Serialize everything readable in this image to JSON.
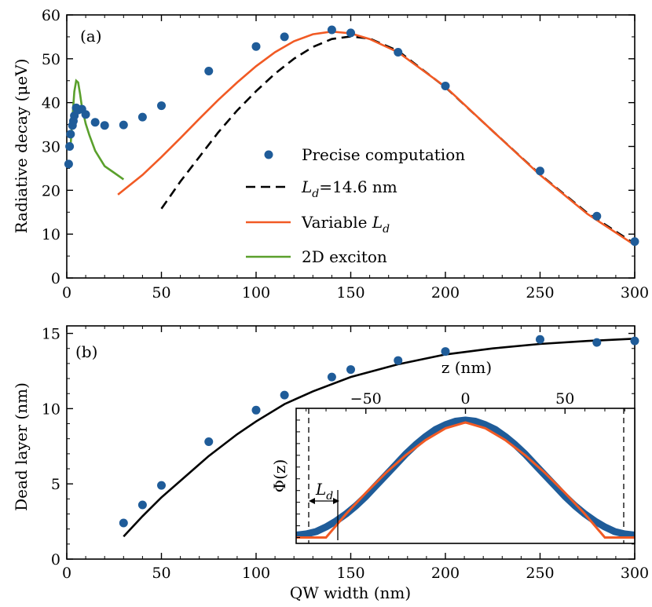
{
  "colors": {
    "points": "#1f5c99",
    "dashed": "#000000",
    "variable": "#f15a24",
    "exciton": "#5aa02c",
    "fit": "#000000",
    "axis": "#000000"
  },
  "chart_data": [
    {
      "type": "scatter",
      "panel_label": "(a)",
      "xlabel": "",
      "ylabel": "Radiative decay (μeV)",
      "xlim": [
        0,
        300
      ],
      "ylim": [
        0,
        60
      ],
      "x_ticks": [
        "0",
        "50",
        "100",
        "150",
        "200",
        "250",
        "300"
      ],
      "y_ticks": [
        "0",
        "10",
        "20",
        "30",
        "40",
        "50",
        "60"
      ],
      "grid": false,
      "legend_position": "center",
      "series": [
        {
          "name": "Precise computation",
          "style": "points",
          "x": [
            1,
            1.5,
            2,
            3,
            3.5,
            4,
            5,
            6,
            8,
            10,
            15,
            20,
            30,
            40,
            50,
            75,
            100,
            115,
            140,
            150,
            175,
            200,
            250,
            280,
            300
          ],
          "y": [
            26,
            30,
            32.8,
            34.8,
            35.8,
            37,
            38.8,
            38.3,
            38.5,
            37.3,
            35.5,
            34.8,
            34.9,
            36.7,
            39.3,
            47.2,
            52.8,
            55,
            56.6,
            55.9,
            51.5,
            43.8,
            24.4,
            14.1,
            8.3
          ]
        },
        {
          "name_prefix": "L",
          "name_sub": "d",
          "name_suffix": "=14.6 nm",
          "style": "dashed",
          "x": [
            50,
            60,
            70,
            80,
            90,
            100,
            110,
            120,
            130,
            140,
            150,
            160,
            175,
            200,
            225,
            250,
            275,
            300
          ],
          "y": [
            15.8,
            22,
            27.6,
            33.2,
            38.2,
            42.6,
            46.6,
            50,
            52.7,
            54.5,
            55.1,
            54.6,
            51.8,
            43.5,
            33.5,
            23.6,
            14.8,
            7.8
          ]
        },
        {
          "name_prefix": "Variable ",
          "name_sub": "d",
          "name_italic": "L",
          "style": "solid-variable",
          "x": [
            27,
            40,
            50,
            60,
            70,
            80,
            90,
            100,
            110,
            120,
            130,
            140,
            150,
            160,
            175,
            200,
            225,
            250,
            275,
            300
          ],
          "y": [
            19,
            23.5,
            27.6,
            31.9,
            36.3,
            40.6,
            44.6,
            48.3,
            51.5,
            54,
            55.6,
            56.2,
            55.8,
            54.5,
            51.5,
            43.6,
            33.5,
            23.5,
            14.6,
            7.5
          ]
        },
        {
          "name": "2D exciton",
          "style": "solid-exciton",
          "x": [
            2,
            3,
            4,
            5,
            6,
            7,
            8,
            10,
            12,
            15,
            20,
            25,
            30
          ],
          "y": [
            30,
            36.5,
            42.5,
            45,
            44.6,
            42,
            39,
            35.2,
            32.5,
            29,
            25.5,
            24,
            22.5
          ]
        }
      ]
    },
    {
      "type": "scatter",
      "panel_label": "(b)",
      "xlabel": "QW width (nm)",
      "ylabel": "Dead layer (nm)",
      "xlim": [
        0,
        300
      ],
      "ylim": [
        0,
        15.5
      ],
      "x_ticks": [
        "0",
        "50",
        "100",
        "150",
        "200",
        "250",
        "300"
      ],
      "y_ticks": [
        "0",
        "5",
        "10",
        "15"
      ],
      "grid": false,
      "series": [
        {
          "style": "points",
          "x": [
            30,
            40,
            50,
            75,
            100,
            115,
            140,
            150,
            175,
            200,
            250,
            280,
            300
          ],
          "y": [
            2.4,
            3.6,
            4.9,
            7.8,
            9.9,
            10.9,
            12.1,
            12.6,
            13.2,
            13.8,
            14.6,
            14.4,
            14.5
          ]
        },
        {
          "style": "fit",
          "x": [
            30,
            40,
            50,
            60,
            75,
            90,
            100,
            115,
            130,
            150,
            175,
            200,
            225,
            250,
            275,
            300
          ],
          "y": [
            1.5,
            2.85,
            4.1,
            5.2,
            6.85,
            8.3,
            9.15,
            10.3,
            11.15,
            12.1,
            12.95,
            13.6,
            14.0,
            14.3,
            14.5,
            14.65
          ]
        }
      ]
    },
    {
      "type": "line",
      "panel_label": "",
      "xlabel": "z (nm)",
      "ylabel": "Φ(z)",
      "xlim": [
        -85,
        85
      ],
      "ylim": [
        -0.05,
        1.1
      ],
      "x_ticks": [
        "−50",
        "0",
        "50"
      ],
      "x_tick_values": [
        -50,
        0,
        50
      ],
      "annotation_prefix": "L",
      "annotation_sub": "d",
      "dashed_x": [
        -85,
        85
      ],
      "series": [
        {
          "style": "blue-band",
          "x": [
            -85,
            -80,
            -75,
            -70,
            -65,
            -60,
            -55,
            -50,
            -45,
            -40,
            -35,
            -30,
            -25,
            -20,
            -15,
            -10,
            -5,
            0,
            5,
            10,
            15,
            20,
            25,
            30,
            35,
            40,
            45,
            50,
            55,
            60,
            65,
            70,
            75,
            80,
            85
          ],
          "y": [
            0.02,
            0.03,
            0.05,
            0.09,
            0.14,
            0.2,
            0.27,
            0.35,
            0.44,
            0.53,
            0.62,
            0.71,
            0.79,
            0.86,
            0.92,
            0.96,
            0.99,
            1.0,
            0.99,
            0.96,
            0.92,
            0.86,
            0.79,
            0.71,
            0.62,
            0.53,
            0.44,
            0.35,
            0.27,
            0.2,
            0.14,
            0.09,
            0.05,
            0.03,
            0.02
          ]
        },
        {
          "style": "orange-line",
          "x": [
            -85,
            -70,
            -60,
            -50,
            -40,
            -30,
            -20,
            -10,
            0,
            10,
            20,
            30,
            40,
            50,
            60,
            70,
            85
          ],
          "y": [
            0,
            0,
            0.2,
            0.38,
            0.55,
            0.7,
            0.83,
            0.93,
            0.98,
            0.93,
            0.83,
            0.7,
            0.55,
            0.38,
            0.2,
            0,
            0
          ]
        }
      ]
    }
  ]
}
